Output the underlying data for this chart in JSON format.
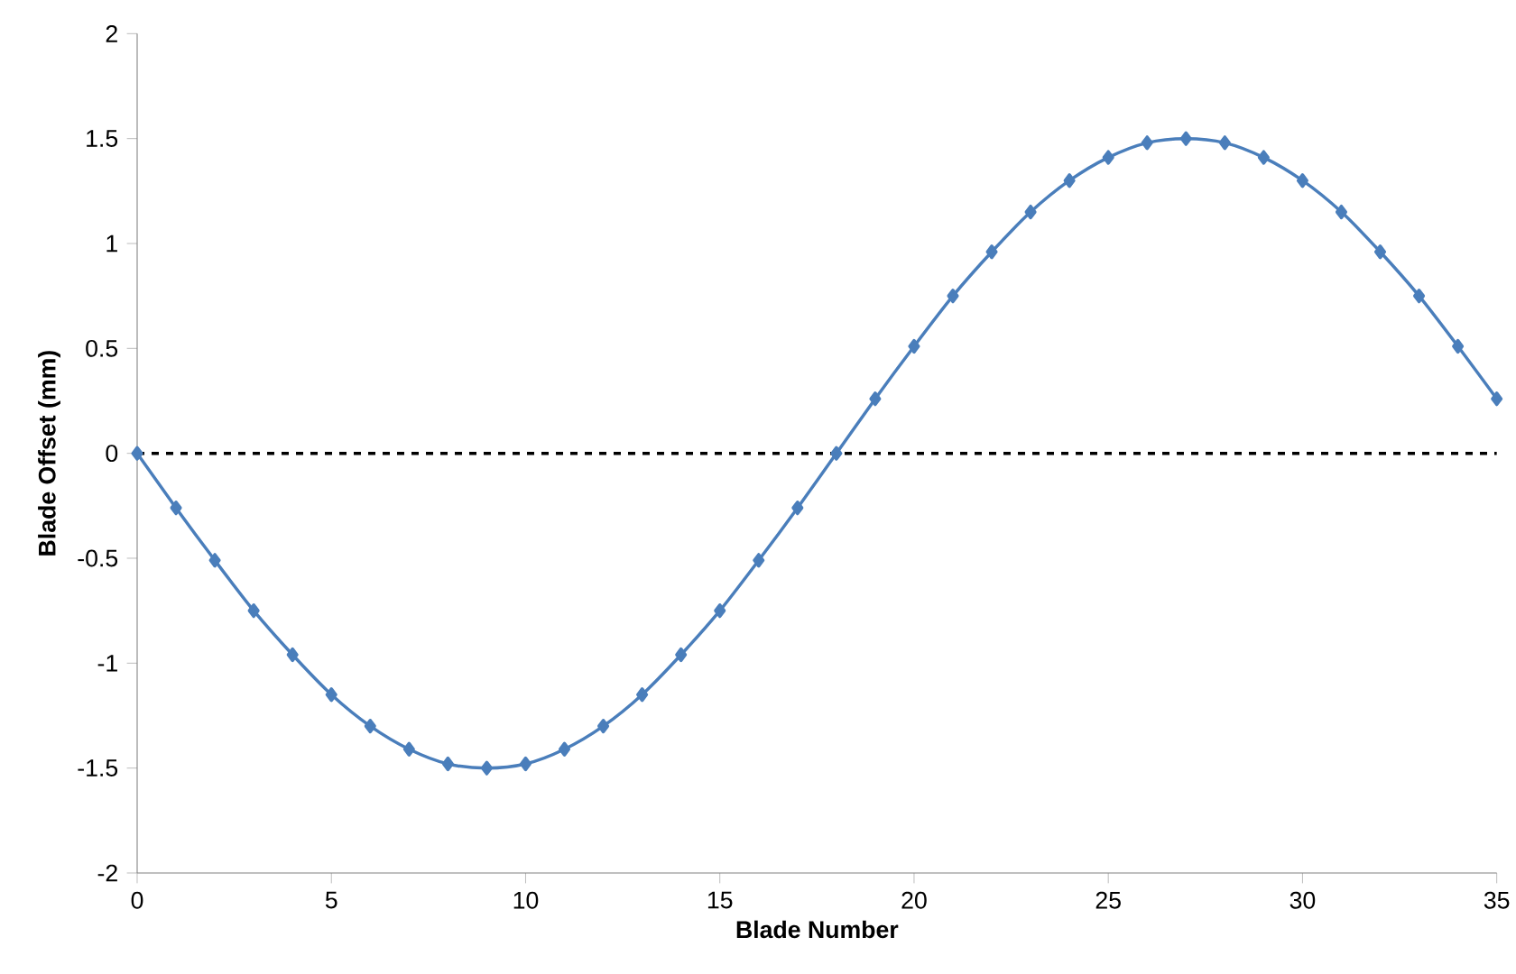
{
  "chart_data": {
    "type": "line",
    "xlabel": "Blade Number",
    "ylabel": "Blade Offset (mm)",
    "x": [
      0,
      1,
      2,
      3,
      4,
      5,
      6,
      7,
      8,
      9,
      10,
      11,
      12,
      13,
      14,
      15,
      16,
      17,
      18,
      19,
      20,
      21,
      22,
      23,
      24,
      25,
      26,
      27,
      28,
      29,
      30,
      31,
      32,
      33,
      34,
      35
    ],
    "series": [
      {
        "color": "#4a7ebb",
        "values": [
          0,
          -0.26,
          -0.51,
          -0.75,
          -0.96,
          -1.15,
          -1.3,
          -1.41,
          -1.48,
          -1.5,
          -1.48,
          -1.41,
          -1.3,
          -1.15,
          -0.96,
          -0.75,
          -0.51,
          -0.26,
          0,
          0.26,
          0.51,
          0.75,
          0.96,
          1.15,
          1.3,
          1.41,
          1.48,
          1.5,
          1.48,
          1.41,
          1.3,
          1.15,
          0.96,
          0.75,
          0.51,
          0.26
        ]
      }
    ],
    "xlim": [
      0,
      35
    ],
    "ylim": [
      -2,
      2
    ],
    "xticks": [
      0,
      5,
      10,
      15,
      20,
      25,
      30,
      35
    ],
    "yticks": [
      -2,
      -1.5,
      -1,
      -0.5,
      0,
      0.5,
      1,
      1.5,
      2
    ],
    "ref_lines": [
      {
        "axis": "y",
        "value": 0,
        "color": "#000000",
        "line_style": "dashed"
      }
    ],
    "marker": "diamond",
    "line_style": "solid",
    "grid": false
  }
}
